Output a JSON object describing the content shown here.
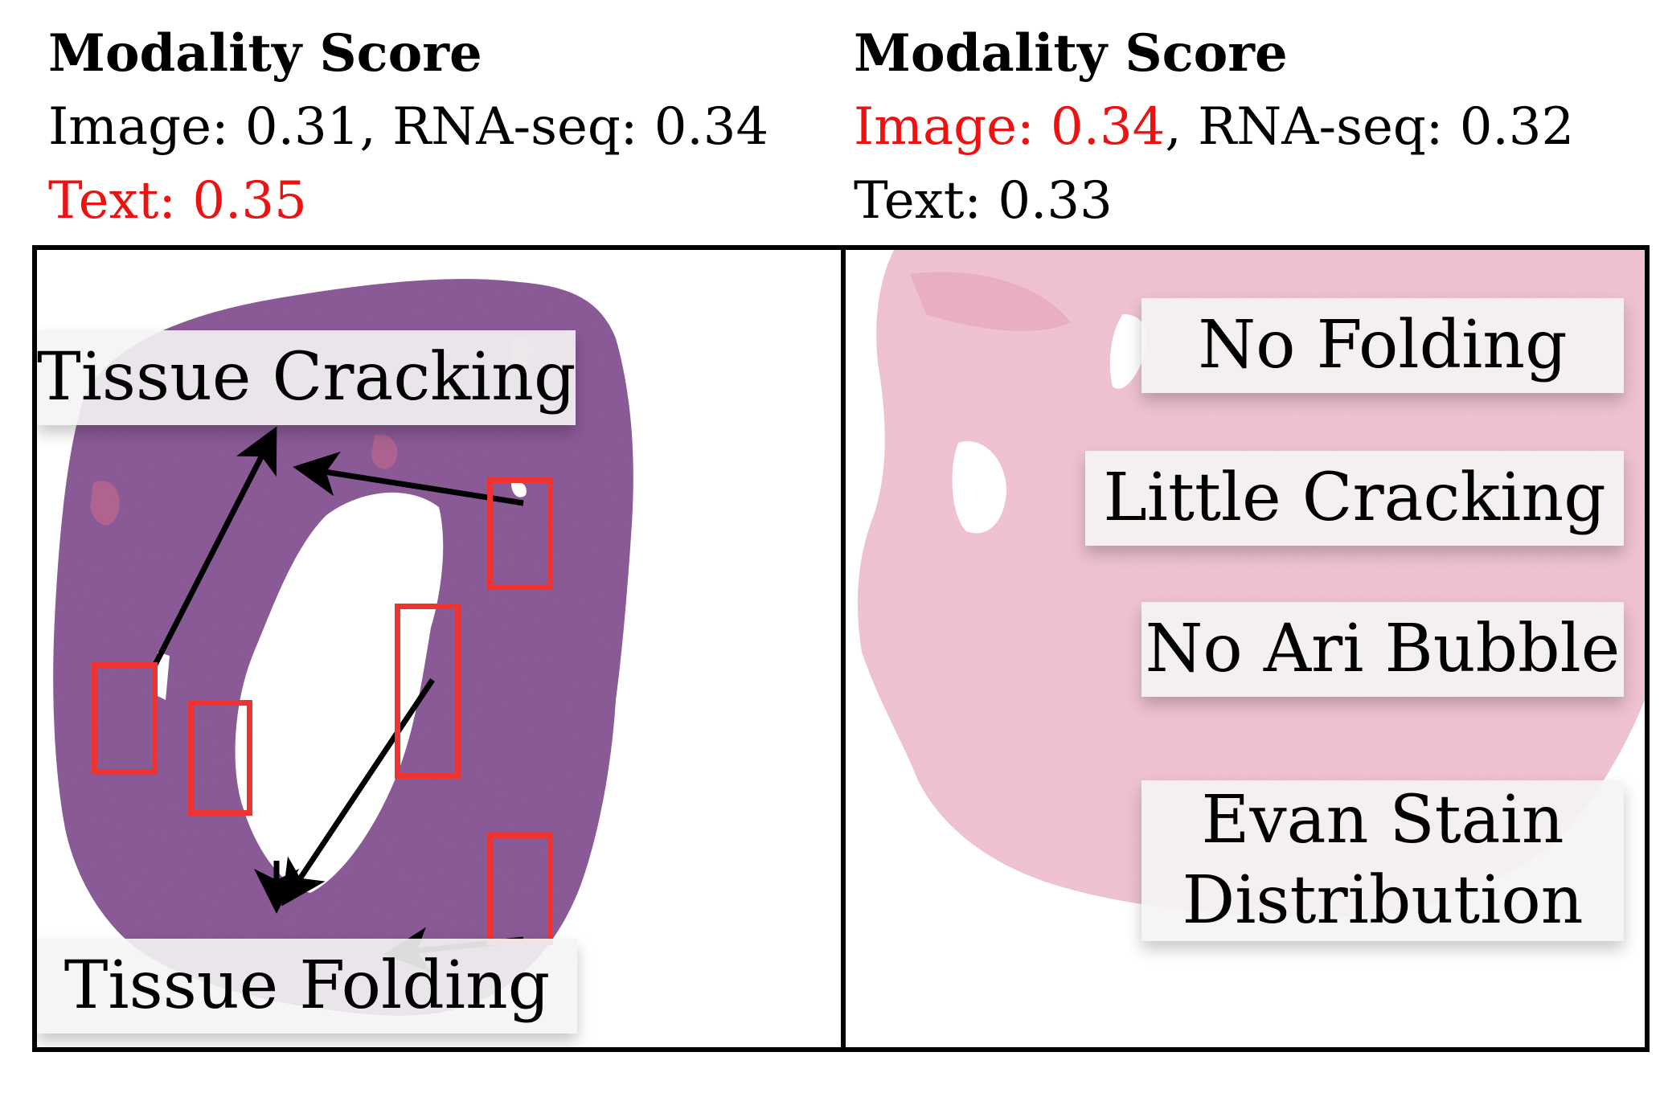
{
  "left": {
    "title": "Modality Score",
    "image_score_text": "Image: 0.31",
    "separator": ", ",
    "rna_score_text": "RNA-seq: 0.34",
    "text_score_text": "Text: 0.35",
    "highlight_color": "#ee1111",
    "labels": {
      "cracking": "Tissue Cracking",
      "folding": "Tissue Folding"
    }
  },
  "right": {
    "title": "Modality Score",
    "image_score_text": "Image: 0.34",
    "separator": ", ",
    "rna_score_text": "RNA-seq: 0.32",
    "text_score_text": "Text: 0.33",
    "highlight_color": "#ee1111",
    "labels": {
      "no_folding": "No Folding",
      "little_cracking": "Little Cracking",
      "no_air_bubble": "No Ari Bubble",
      "stain_line1": "Evan Stain",
      "stain_line2": "Distribution"
    }
  },
  "colors": {
    "tissue_left": "#8a5a96",
    "tissue_right": "#eec3d2",
    "annotation_box": "#ee3333",
    "arrow": "#000000"
  }
}
